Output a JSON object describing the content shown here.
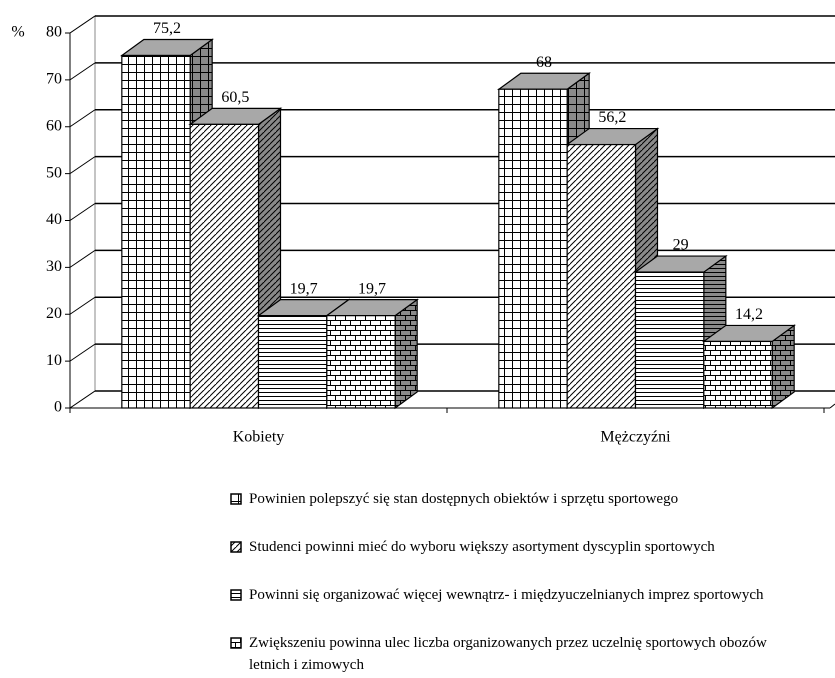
{
  "chart_data": {
    "type": "bar3d",
    "y_label": "%",
    "categories": [
      "Kobiety",
      "Mężczyźni"
    ],
    "series": [
      {
        "name": "Powinien polepszyć się stan dostępnych obiektów i sprzętu sportowego",
        "values": [
          75.2,
          68
        ],
        "value_labels": [
          "75,2",
          "68"
        ]
      },
      {
        "name": "Studenci powinni mieć do wyboru większy asortyment dyscyplin sportowych",
        "values": [
          60.5,
          56.2
        ],
        "value_labels": [
          "60,5",
          "56,2"
        ]
      },
      {
        "name": "Powinni się organizować więcej wewnątrz- i międzyuczelnianych imprez sportowych",
        "values": [
          19.7,
          29
        ],
        "value_labels": [
          "19,7",
          "29"
        ]
      },
      {
        "name": "Zwiększeniu powinna ulec liczba organizowanych przez uczelnię sportowych obozów letnich i zimowych",
        "values": [
          19.7,
          14.2
        ],
        "value_labels": [
          "19,7",
          "14,2"
        ]
      }
    ],
    "ylim": [
      0,
      80
    ],
    "yticks": [
      0,
      10,
      20,
      30,
      40,
      50,
      60,
      70,
      80
    ],
    "grid": true
  }
}
